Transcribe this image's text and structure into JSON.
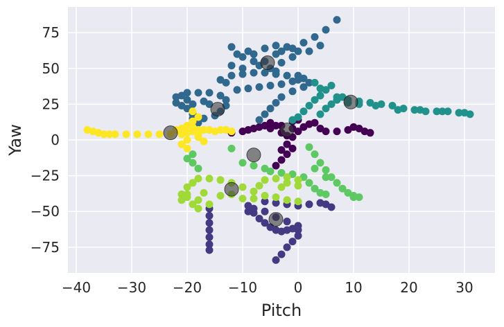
{
  "chart_data": {
    "type": "scatter",
    "title": "",
    "xlabel": "Pitch",
    "ylabel": "Yaw",
    "xlim": [
      -41.5,
      35.5
    ],
    "ylim": [
      -93,
      93
    ],
    "xticks": [
      -40,
      -30,
      -20,
      -10,
      0,
      10,
      20,
      30
    ],
    "yticks": [
      -75,
      -50,
      -25,
      0,
      25,
      50,
      75
    ],
    "xtick_labels": [
      "−40",
      "−30",
      "−20",
      "−10",
      "0",
      "10",
      "20",
      "30"
    ],
    "ytick_labels": [
      "−75",
      "−50",
      "−25",
      "0",
      "25",
      "50",
      "75"
    ],
    "grid": true,
    "colormap": "viridis",
    "background": "#eaeaf2",
    "centroid_color": "#3a3a3a",
    "clusters": [
      {
        "color": "#440154",
        "points": [
          [
            -12,
            5
          ],
          [
            -10,
            6
          ],
          [
            -8,
            8
          ],
          [
            -6,
            10
          ],
          [
            -5,
            12
          ],
          [
            -4,
            10
          ],
          [
            -3,
            5
          ],
          [
            -2,
            3
          ],
          [
            -1,
            2
          ],
          [
            0,
            6
          ],
          [
            1,
            9
          ],
          [
            2,
            11
          ],
          [
            3,
            12
          ],
          [
            4,
            8
          ],
          [
            5,
            6
          ],
          [
            7,
            6
          ],
          [
            9,
            7
          ],
          [
            10,
            9
          ],
          [
            11,
            8
          ],
          [
            12,
            6
          ],
          [
            13,
            5
          ],
          [
            -2,
            -3
          ],
          [
            -1,
            -6
          ],
          [
            -2,
            -10
          ],
          [
            -3,
            -14
          ],
          [
            -4,
            -18
          ],
          [
            -9,
            7
          ],
          [
            -7,
            9
          ],
          [
            -5,
            8
          ],
          [
            -3,
            10
          ],
          [
            -1,
            13
          ],
          [
            0,
            14
          ],
          [
            -1,
            8
          ],
          [
            -3,
            -7
          ]
        ]
      },
      {
        "color": "#443983",
        "points": [
          [
            -16,
            -48
          ],
          [
            -16,
            -53
          ],
          [
            -16,
            -58
          ],
          [
            -16,
            -63
          ],
          [
            -16,
            -68
          ],
          [
            -16,
            -73
          ],
          [
            -16,
            -77
          ],
          [
            -9,
            -46
          ],
          [
            -8,
            -51
          ],
          [
            -7,
            -55
          ],
          [
            -6,
            -58
          ],
          [
            -5,
            -61
          ],
          [
            -4,
            -63
          ],
          [
            -3,
            -64
          ],
          [
            -2,
            -63
          ],
          [
            -1,
            -62
          ],
          [
            0,
            -60
          ],
          [
            0,
            -63
          ],
          [
            0,
            -67
          ],
          [
            -1,
            -71
          ],
          [
            -2,
            -75
          ],
          [
            -3,
            -80
          ],
          [
            -4,
            -84
          ],
          [
            -6,
            -43
          ],
          [
            -4,
            -44
          ],
          [
            -2,
            -45
          ],
          [
            0,
            -46
          ],
          [
            2,
            -45
          ],
          [
            4,
            -44
          ],
          [
            5,
            -45
          ],
          [
            6,
            -47
          ],
          [
            -8,
            -48
          ],
          [
            -6,
            -50
          ],
          [
            -4,
            -54
          ],
          [
            -2,
            -57
          ],
          [
            -9,
            -50
          ]
        ]
      },
      {
        "color": "#31688e",
        "points": [
          [
            -14,
            42
          ],
          [
            -12,
            45
          ],
          [
            -10,
            46
          ],
          [
            -8,
            47
          ],
          [
            -6,
            47
          ],
          [
            -4,
            46
          ],
          [
            -2,
            45
          ],
          [
            0,
            45
          ],
          [
            1,
            43
          ],
          [
            2,
            40
          ],
          [
            1,
            37
          ],
          [
            -1,
            34
          ],
          [
            -3,
            30
          ],
          [
            -4,
            26
          ],
          [
            -5,
            22
          ],
          [
            -6,
            18
          ],
          [
            -7,
            14
          ],
          [
            -5,
            50
          ],
          [
            -3,
            54
          ],
          [
            -1,
            58
          ],
          [
            0,
            62
          ],
          [
            -2,
            65
          ],
          [
            -4,
            66
          ],
          [
            -6,
            64
          ],
          [
            -8,
            60
          ],
          [
            -10,
            58
          ],
          [
            -11,
            60
          ],
          [
            -9,
            62
          ],
          [
            -12,
            65
          ],
          [
            -4,
            60
          ],
          [
            -3,
            62
          ],
          [
            -1,
            64
          ],
          [
            1,
            68
          ],
          [
            3,
            72
          ],
          [
            5,
            77
          ],
          [
            7,
            84
          ],
          [
            -12,
            52
          ],
          [
            -10,
            50
          ],
          [
            -8,
            55
          ],
          [
            -13,
            40
          ],
          [
            -11,
            35
          ],
          [
            -9,
            36
          ],
          [
            -7,
            37
          ],
          [
            -5,
            38
          ],
          [
            -3,
            39
          ],
          [
            -1,
            41
          ],
          [
            0,
            42
          ],
          [
            -6,
            55
          ],
          [
            -7,
            52
          ],
          [
            -4,
            48
          ],
          [
            2,
            62
          ],
          [
            4,
            66
          ],
          [
            -19,
            25
          ],
          [
            -20,
            28
          ],
          [
            -21,
            31
          ],
          [
            -20,
            33
          ],
          [
            -18,
            33
          ],
          [
            -16,
            33
          ],
          [
            -14,
            31
          ],
          [
            -13,
            28
          ],
          [
            -13,
            24
          ],
          [
            -14,
            20
          ],
          [
            -15,
            17
          ],
          [
            -17,
            15
          ],
          [
            -18,
            12
          ],
          [
            -19,
            18
          ],
          [
            -20,
            22
          ],
          [
            -22,
            30
          ],
          [
            -22,
            26
          ],
          [
            -21,
            24
          ],
          [
            -16,
            25
          ],
          [
            -19,
            15
          ],
          [
            -17,
            27
          ]
        ]
      },
      {
        "color": "#21918c",
        "points": [
          [
            4,
            18
          ],
          [
            5,
            22
          ],
          [
            6,
            25
          ],
          [
            7,
            28
          ],
          [
            8,
            30
          ],
          [
            9,
            28
          ],
          [
            11,
            27
          ],
          [
            13,
            26
          ],
          [
            15,
            25
          ],
          [
            17,
            24
          ],
          [
            19,
            22
          ],
          [
            21,
            21
          ],
          [
            23,
            20
          ],
          [
            25,
            20
          ],
          [
            27,
            20
          ],
          [
            29,
            19
          ],
          [
            31,
            18
          ],
          [
            3,
            28
          ],
          [
            4,
            31
          ],
          [
            5,
            35
          ],
          [
            6,
            38
          ],
          [
            2,
            24
          ],
          [
            1,
            20
          ],
          [
            0,
            16
          ],
          [
            -1,
            14
          ],
          [
            3,
            40
          ],
          [
            4,
            36
          ],
          [
            11,
            25
          ],
          [
            14,
            24
          ],
          [
            18,
            21
          ],
          [
            22,
            21
          ],
          [
            26,
            20
          ],
          [
            30,
            19
          ],
          [
            7,
            30
          ],
          [
            9,
            26
          ]
        ]
      },
      {
        "color": "#5ec962",
        "points": [
          [
            2,
            -5
          ],
          [
            3,
            -10
          ],
          [
            4,
            -16
          ],
          [
            5,
            -21
          ],
          [
            6,
            -26
          ],
          [
            7,
            -30
          ],
          [
            8,
            -34
          ],
          [
            9,
            -37
          ],
          [
            10,
            -39
          ],
          [
            11,
            -40
          ],
          [
            -5,
            -22
          ],
          [
            -3,
            -23
          ],
          [
            -1,
            -24
          ],
          [
            1,
            -26
          ],
          [
            2,
            -30
          ],
          [
            3,
            -34
          ],
          [
            4,
            -37
          ],
          [
            5,
            -38
          ],
          [
            -12,
            -6
          ],
          [
            -10,
            -16
          ],
          [
            -8,
            -18
          ],
          [
            -6,
            -20
          ],
          [
            -19,
            -10
          ],
          [
            -19,
            -16
          ],
          [
            -18,
            -20
          ],
          [
            3,
            -20
          ],
          [
            5,
            -26
          ],
          [
            -20,
            -13
          ],
          [
            10,
            -40
          ]
        ]
      },
      {
        "color": "#a0da39",
        "points": [
          [
            -20,
            -38
          ],
          [
            -20,
            -33
          ],
          [
            -19,
            -30
          ],
          [
            -18,
            -27
          ],
          [
            -16,
            -27
          ],
          [
            -14,
            -28
          ],
          [
            -12,
            -30
          ],
          [
            -10,
            -33
          ],
          [
            -8,
            -36
          ],
          [
            -6,
            -39
          ],
          [
            -4,
            -40
          ],
          [
            -2,
            -42
          ],
          [
            0,
            -43
          ],
          [
            -6,
            -28
          ],
          [
            -4,
            -27
          ],
          [
            -2,
            -26
          ],
          [
            0,
            -28
          ],
          [
            0,
            -32
          ],
          [
            -2,
            -30
          ],
          [
            -20,
            -40
          ],
          [
            -18,
            -42
          ],
          [
            -16,
            -45
          ],
          [
            -18,
            -48
          ],
          [
            -21,
            -38
          ],
          [
            -19,
            -45
          ],
          [
            -14,
            -39
          ],
          [
            -12,
            -38
          ],
          [
            -10,
            -41
          ],
          [
            -8,
            -41
          ],
          [
            -3,
            -33
          ],
          [
            -7,
            -32
          ],
          [
            -21,
            -42
          ],
          [
            -17,
            -37
          ]
        ]
      },
      {
        "color": "#fde725",
        "points": [
          [
            -38,
            7
          ],
          [
            -37,
            6
          ],
          [
            -36,
            5
          ],
          [
            -35,
            4
          ],
          [
            -34,
            4
          ],
          [
            -33,
            4
          ],
          [
            -31,
            4
          ],
          [
            -29,
            4
          ],
          [
            -27,
            4
          ],
          [
            -25,
            4
          ],
          [
            -23,
            4
          ],
          [
            -21,
            4
          ],
          [
            -20,
            5
          ],
          [
            -19,
            6
          ],
          [
            -18,
            7
          ],
          [
            -17,
            7
          ],
          [
            -16,
            7
          ],
          [
            -15,
            6
          ],
          [
            -14,
            7
          ],
          [
            -13,
            7
          ],
          [
            -12,
            6
          ],
          [
            -20,
            10
          ],
          [
            -19,
            13
          ],
          [
            -18,
            16
          ],
          [
            -19,
            20
          ],
          [
            -20,
            0
          ],
          [
            -21,
            -3
          ],
          [
            -20,
            -6
          ],
          [
            -18,
            2
          ],
          [
            -21,
            8
          ],
          [
            -22,
            7
          ],
          [
            -19,
            9
          ],
          [
            -18,
            4
          ],
          [
            -17,
            -1
          ]
        ]
      }
    ],
    "centroids": [
      [
        -5.5,
        54
      ],
      [
        9.5,
        26.5
      ],
      [
        -14.5,
        21.5
      ],
      [
        -23,
        5
      ],
      [
        -2,
        7
      ],
      [
        -8,
        -10.5
      ],
      [
        -12,
        -34.5
      ],
      [
        -4,
        -55.5
      ]
    ]
  }
}
